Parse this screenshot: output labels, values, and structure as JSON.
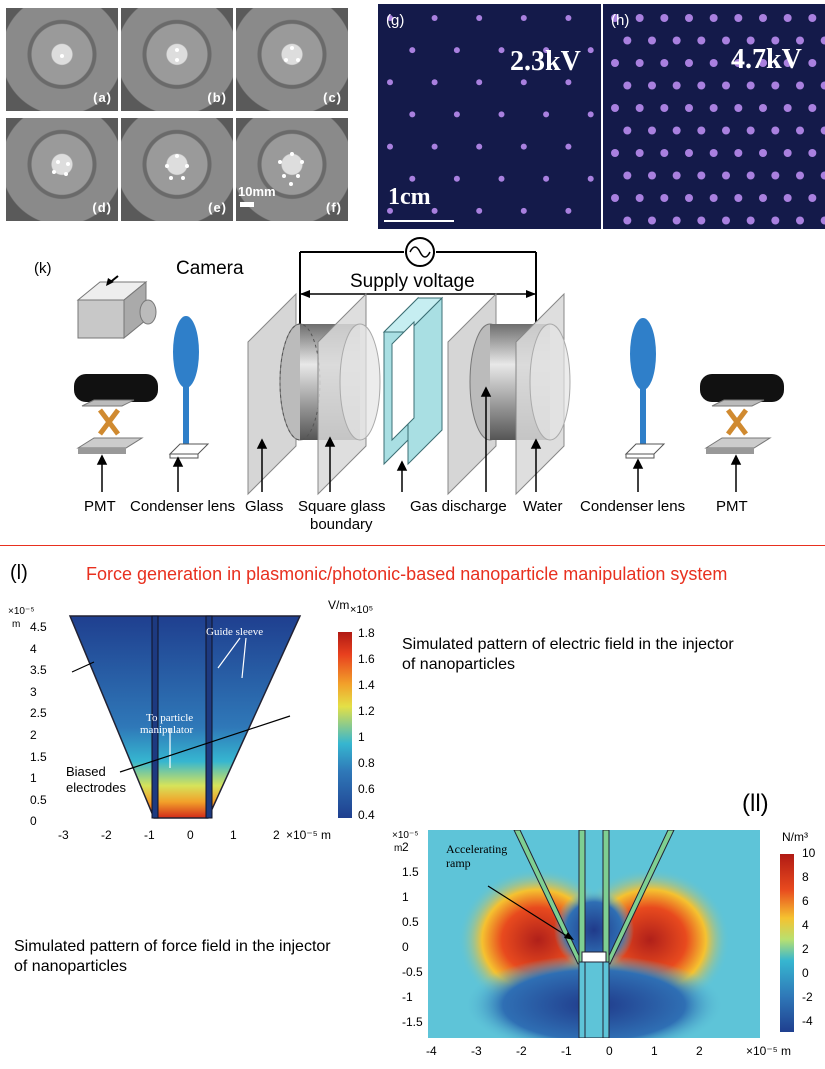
{
  "photos": [
    {
      "label": "(a)"
    },
    {
      "label": "(b)"
    },
    {
      "label": "(c)"
    },
    {
      "label": "(d)"
    },
    {
      "label": "(e)"
    },
    {
      "label": "(f)"
    }
  ],
  "scale_bar_photo": "10mm",
  "discharge_panels": [
    {
      "label": "(g)",
      "voltage": "2.3kV",
      "scale": "1cm"
    },
    {
      "label": "(h)",
      "voltage": "4.7kV"
    }
  ],
  "setup": {
    "label": "(k)",
    "camera": "Camera",
    "supply": "Supply voltage",
    "bottom_labels": [
      "PMT",
      "Condenser lens",
      "Glass",
      "Square glass",
      "boundary",
      "Gas discharge",
      "Water",
      "Condenser lens",
      "PMT"
    ]
  },
  "section_l": {
    "label": "(l)",
    "title": "Force generation in plasmonic/photonic-based nanoparticle manipulation system",
    "desc1_line1": "Simulated pattern of electric field in the injector",
    "desc1_line2": "of nanoparticles",
    "desc2_line1": "Simulated pattern of force field in the injector",
    "desc2_line2": "of nanoparticles",
    "plot1": {
      "y_exp": "×10⁻⁵",
      "y_unit": "m",
      "y_ticks": [
        "4.5",
        "4",
        "3.5",
        "3",
        "2.5",
        "2",
        "1.5",
        "1",
        "0.5",
        "0"
      ],
      "x_ticks": [
        "-3",
        "-2",
        "-1",
        "0",
        "1",
        "2"
      ],
      "x_exp": "×10⁻⁵ m",
      "cb_unit": "V/m",
      "cb_exp": "×10⁵",
      "cb_ticks": [
        "1.8",
        "1.6",
        "1.4",
        "1.2",
        "1",
        "0.8",
        "0.6",
        "0.4"
      ],
      "ann_guide": "Guide sleeve",
      "ann_to1": "To particle",
      "ann_to2": "manipulator",
      "ann_b1": "Biased",
      "ann_b2": "electrodes"
    },
    "plot2": {
      "label": "(ll)",
      "y_exp": "×10⁻⁵",
      "y_unit": "m",
      "y_ticks": [
        "2",
        "1.5",
        "1",
        "0.5",
        "0",
        "-0.5",
        "-1",
        "-1.5"
      ],
      "x_ticks": [
        "-4",
        "-3",
        "-2",
        "-1",
        "0",
        "1",
        "2"
      ],
      "x_exp": "×10⁻⁵ m",
      "cb_unit": "N/m³",
      "cb_ticks": [
        "10",
        "8",
        "6",
        "4",
        "2",
        "0",
        "-2",
        "-4"
      ],
      "ann1": "Accelerating",
      "ann2": "ramp"
    }
  },
  "colors": {
    "title": "#e8301f",
    "lens": "#2f7fc9",
    "glass_face": "#d2d2d2",
    "boundary": "#a9dfe3"
  }
}
